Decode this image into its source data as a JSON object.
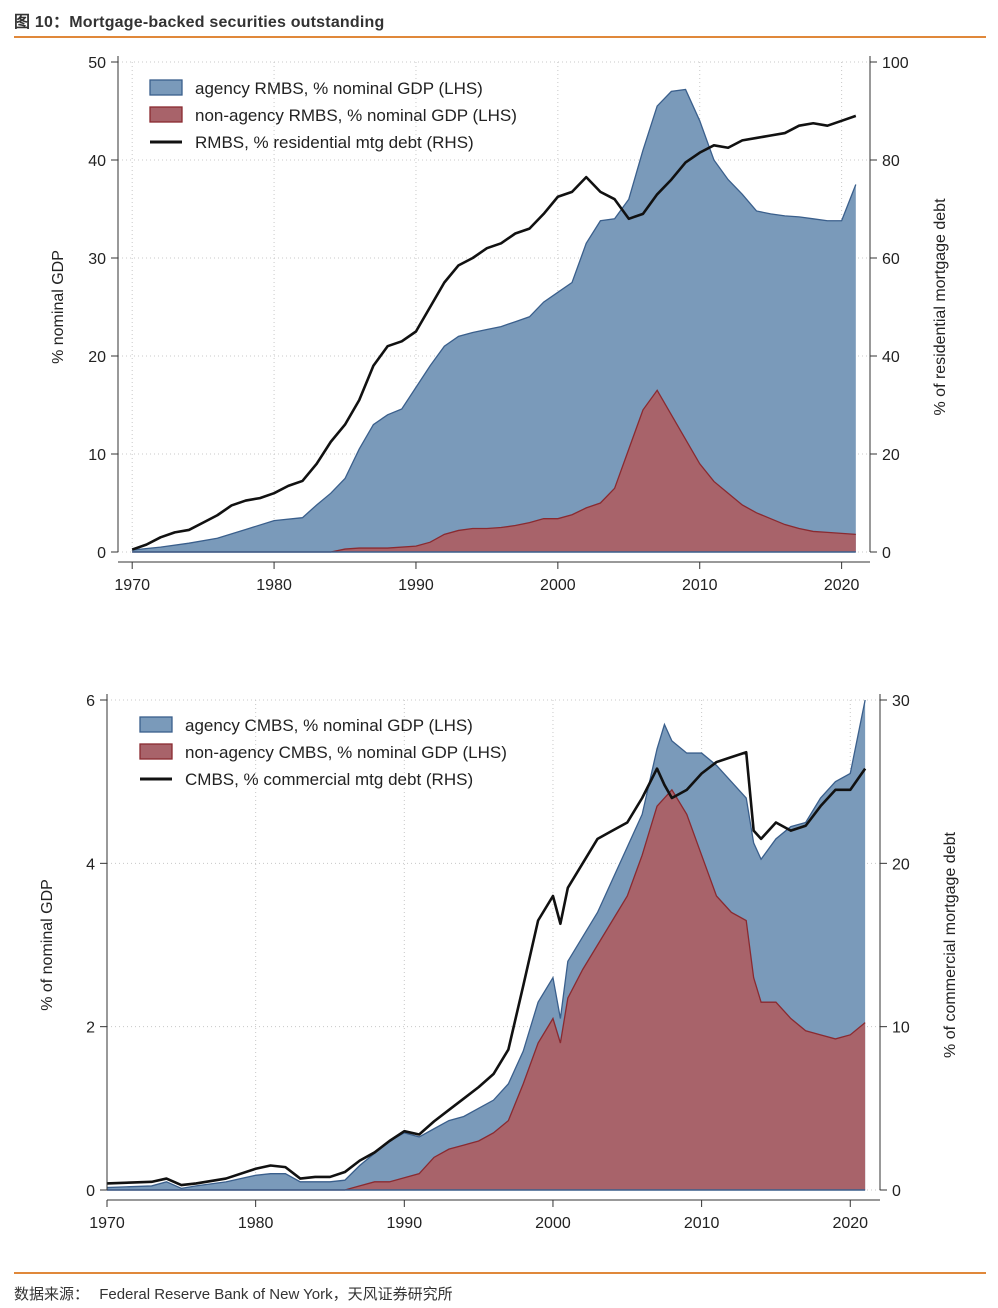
{
  "figure": {
    "title": "图 10：Mortgage-backed securities outstanding",
    "source_label": "数据来源：",
    "source_text": "Federal Reserve Bank of New York，天风证券研究所"
  },
  "colors": {
    "agency": "#7a9aba",
    "agency_edge": "#3a5f8c",
    "nonagency": "#a8636a",
    "nonagency_edge": "#8a2a30",
    "line": "#111111",
    "rule": "#e0883a",
    "grid": "#c8c8c8"
  },
  "chart_data": [
    {
      "type": "area",
      "title": "",
      "ylabel": "% nominal GDP",
      "y2label": "% of residential mortgage debt",
      "xlim": [
        1969,
        2022
      ],
      "ylim": [
        0,
        50
      ],
      "y2lim": [
        0,
        100
      ],
      "xticks": [
        1970,
        1980,
        1990,
        2000,
        2010,
        2020
      ],
      "yticks": [
        0,
        10,
        20,
        30,
        40,
        50
      ],
      "y2ticks": [
        0,
        20,
        40,
        60,
        80,
        100
      ],
      "legend_position": "top-left",
      "series": [
        {
          "name": "agency RMBS, % nominal GDP (LHS)",
          "kind": "area",
          "axis": "left",
          "stack": "top",
          "x": [
            1970,
            1972,
            1974,
            1976,
            1978,
            1980,
            1982,
            1983,
            1984,
            1985,
            1986,
            1987,
            1988,
            1989,
            1990,
            1991,
            1992,
            1993,
            1994,
            1995,
            1996,
            1997,
            1998,
            1999,
            2000,
            2001,
            2002,
            2003,
            2004,
            2005,
            2006,
            2007,
            2008,
            2009,
            2010,
            2011,
            2012,
            2013,
            2014,
            2015,
            2016,
            2017,
            2018,
            2019,
            2020,
            2021
          ],
          "values": [
            0.2,
            0.5,
            0.9,
            1.4,
            2.3,
            3.2,
            3.5,
            4.8,
            6.0,
            7.5,
            10.5,
            13.0,
            14.0,
            14.6,
            16.8,
            19.0,
            21.0,
            22.0,
            22.4,
            22.7,
            23.0,
            23.5,
            24.0,
            25.5,
            26.5,
            27.5,
            31.5,
            33.8,
            34.0,
            36.0,
            41.0,
            45.5,
            47.0,
            47.2,
            44.0,
            40.0,
            38.0,
            36.5,
            34.8,
            34.5,
            34.3,
            34.2,
            34.0,
            33.8,
            33.8,
            37.5
          ]
        },
        {
          "name": "non-agency RMBS, % nominal GDP (LHS)",
          "kind": "area",
          "axis": "left",
          "stack": "bottom",
          "x": [
            1970,
            1984,
            1985,
            1986,
            1988,
            1990,
            1991,
            1992,
            1993,
            1994,
            1995,
            1996,
            1997,
            1998,
            1999,
            2000,
            2001,
            2002,
            2003,
            2004,
            2005,
            2006,
            2007,
            2008,
            2009,
            2010,
            2011,
            2012,
            2013,
            2014,
            2015,
            2016,
            2017,
            2018,
            2019,
            2020,
            2021
          ],
          "values": [
            0.0,
            0.0,
            0.3,
            0.4,
            0.4,
            0.6,
            1.0,
            1.8,
            2.2,
            2.4,
            2.4,
            2.5,
            2.7,
            3.0,
            3.4,
            3.4,
            3.8,
            4.5,
            5.0,
            6.5,
            10.5,
            14.5,
            16.5,
            14.0,
            11.5,
            9.0,
            7.2,
            6.0,
            4.8,
            4.0,
            3.4,
            2.8,
            2.4,
            2.1,
            2.0,
            1.9,
            1.8
          ]
        },
        {
          "name": "RMBS, % residential mtg debt (RHS)",
          "kind": "line",
          "axis": "right",
          "x": [
            1970,
            1971,
            1972,
            1973,
            1974,
            1975,
            1976,
            1977,
            1978,
            1979,
            1980,
            1981,
            1982,
            1983,
            1984,
            1985,
            1986,
            1987,
            1988,
            1989,
            1990,
            1991,
            1992,
            1993,
            1994,
            1995,
            1996,
            1997,
            1998,
            1999,
            2000,
            2001,
            2002,
            2003,
            2004,
            2005,
            2006,
            2007,
            2008,
            2009,
            2010,
            2011,
            2012,
            2013,
            2014,
            2015,
            2016,
            2017,
            2018,
            2019,
            2020,
            2021
          ],
          "values": [
            0.5,
            1.5,
            3.0,
            4.0,
            4.5,
            6.0,
            7.5,
            9.5,
            10.5,
            11.0,
            12.0,
            13.5,
            14.5,
            18.0,
            22.5,
            26.0,
            31.0,
            38.0,
            42.0,
            43.0,
            45.0,
            50.0,
            55.0,
            58.5,
            60.0,
            62.0,
            63.0,
            65.0,
            66.0,
            69.0,
            72.5,
            73.5,
            76.5,
            73.5,
            72.0,
            68.0,
            69.0,
            73.0,
            76.0,
            79.5,
            81.5,
            83.0,
            82.5,
            84.0,
            84.5,
            85.0,
            85.5,
            87.0,
            87.5,
            87.0,
            88.0,
            89.0
          ],
          "values_rhs_scale_note": "",
          "scale_to_left": 0.5
        }
      ]
    },
    {
      "type": "area",
      "title": "",
      "ylabel": "% of nominal GDP",
      "y2label": "% of commercial mortgage debt",
      "xlim": [
        1970,
        2022
      ],
      "ylim": [
        0,
        6
      ],
      "y2lim": [
        0,
        30
      ],
      "xticks": [
        1970,
        1980,
        1990,
        2000,
        2010,
        2020
      ],
      "yticks": [
        0,
        2,
        4,
        6
      ],
      "y2ticks": [
        0,
        10,
        20,
        30
      ],
      "legend_position": "top-left",
      "series": [
        {
          "name": "agency CMBS, % nominal GDP (LHS)",
          "kind": "area",
          "axis": "left",
          "stack": "top",
          "x": [
            1970,
            1973,
            1974,
            1975,
            1976,
            1978,
            1980,
            1981,
            1982,
            1983,
            1984,
            1985,
            1986,
            1987,
            1988,
            1989,
            1990,
            1991,
            1992,
            1993,
            1994,
            1995,
            1996,
            1997,
            1998,
            1999,
            2000,
            2000.5,
            2001,
            2002,
            2003,
            2004,
            2005,
            2006,
            2007,
            2007.5,
            2008,
            2009,
            2010,
            2011,
            2012,
            2013,
            2013.5,
            2014,
            2015,
            2016,
            2017,
            2018,
            2019,
            2020,
            2021
          ],
          "values": [
            0.03,
            0.05,
            0.1,
            0.02,
            0.05,
            0.1,
            0.18,
            0.2,
            0.2,
            0.1,
            0.1,
            0.1,
            0.12,
            0.3,
            0.45,
            0.6,
            0.7,
            0.65,
            0.75,
            0.85,
            0.9,
            1.0,
            1.1,
            1.3,
            1.7,
            2.3,
            2.6,
            2.1,
            2.8,
            3.1,
            3.4,
            3.8,
            4.2,
            4.6,
            5.4,
            5.7,
            5.5,
            5.35,
            5.35,
            5.2,
            5.0,
            4.8,
            4.25,
            4.05,
            4.3,
            4.45,
            4.5,
            4.8,
            5.0,
            5.1,
            6.0
          ]
        },
        {
          "name": "non-agency CMBS, % nominal GDP (LHS)",
          "kind": "area",
          "axis": "left",
          "stack": "bottom",
          "x": [
            1970,
            1986,
            1987,
            1988,
            1989,
            1990,
            1991,
            1992,
            1993,
            1994,
            1995,
            1996,
            1997,
            1998,
            1999,
            2000,
            2000.5,
            2001,
            2002,
            2003,
            2004,
            2005,
            2006,
            2007,
            2008,
            2009,
            2010,
            2011,
            2012,
            2013,
            2013.5,
            2014,
            2015,
            2016,
            2017,
            2018,
            2019,
            2020,
            2021
          ],
          "values": [
            0.0,
            0.0,
            0.05,
            0.1,
            0.1,
            0.15,
            0.2,
            0.4,
            0.5,
            0.55,
            0.6,
            0.7,
            0.85,
            1.3,
            1.8,
            2.1,
            1.8,
            2.35,
            2.7,
            3.0,
            3.3,
            3.6,
            4.1,
            4.7,
            4.9,
            4.6,
            4.1,
            3.6,
            3.4,
            3.3,
            2.6,
            2.3,
            2.3,
            2.1,
            1.95,
            1.9,
            1.85,
            1.9,
            2.05
          ]
        },
        {
          "name": "CMBS, % commercial mtg debt (RHS)",
          "kind": "line",
          "axis": "right",
          "x": [
            1970,
            1973,
            1974,
            1975,
            1976,
            1978,
            1980,
            1981,
            1982,
            1983,
            1984,
            1985,
            1986,
            1987,
            1988,
            1989,
            1990,
            1991,
            1992,
            1993,
            1994,
            1995,
            1996,
            1997,
            1998,
            1999,
            2000,
            2000.5,
            2001,
            2002,
            2003,
            2004,
            2005,
            2006,
            2007,
            2007.5,
            2008,
            2009,
            2010,
            2011,
            2012,
            2013,
            2013.5,
            2014,
            2015,
            2016,
            2017,
            2018,
            2019,
            2020,
            2021
          ],
          "values": [
            0.4,
            0.5,
            0.7,
            0.3,
            0.4,
            0.7,
            1.3,
            1.5,
            1.4,
            0.7,
            0.8,
            0.8,
            1.1,
            1.8,
            2.3,
            3.0,
            3.6,
            3.4,
            4.2,
            4.9,
            5.6,
            6.3,
            7.1,
            8.6,
            12.5,
            16.5,
            18.0,
            16.3,
            18.5,
            20.0,
            21.5,
            22.0,
            22.5,
            24.0,
            25.8,
            24.8,
            24.0,
            24.5,
            25.5,
            26.2,
            26.5,
            26.8,
            22.0,
            21.5,
            22.5,
            22.0,
            22.3,
            23.5,
            24.5,
            24.5,
            25.8
          ]
        }
      ]
    }
  ]
}
